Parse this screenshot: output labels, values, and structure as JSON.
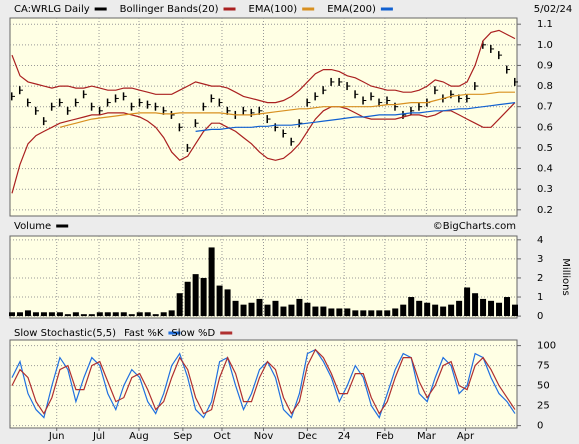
{
  "chart_data": [
    {
      "type": "price",
      "date": "5/02/24",
      "series": [
        {
          "name": "CA:WRLG Daily",
          "color": "#000000",
          "style": "bars",
          "values": [
            0.75,
            0.78,
            0.72,
            0.68,
            0.63,
            0.7,
            0.72,
            0.68,
            0.72,
            0.76,
            0.7,
            0.68,
            0.72,
            0.74,
            0.75,
            0.7,
            0.72,
            0.71,
            0.7,
            0.68,
            0.66,
            0.6,
            0.5,
            0.62,
            0.7,
            0.74,
            0.72,
            0.68,
            0.66,
            0.68,
            0.67,
            0.68,
            0.64,
            0.6,
            0.57,
            0.53,
            0.62,
            0.72,
            0.75,
            0.78,
            0.82,
            0.82,
            0.8,
            0.76,
            0.73,
            0.75,
            0.72,
            0.73,
            0.7,
            0.66,
            0.68,
            0.7,
            0.72,
            0.78,
            0.74,
            0.76,
            0.74,
            0.74,
            0.8,
            1.0,
            0.98,
            0.95,
            0.88,
            0.82
          ]
        },
        {
          "name": "Bollinger Bands(20)",
          "color": "#aa2020",
          "style": "band",
          "values": [
            0.95,
            0.85,
            0.82,
            0.81,
            0.8,
            0.79,
            0.8,
            0.8,
            0.79,
            0.79,
            0.8,
            0.79,
            0.78,
            0.78,
            0.79,
            0.79,
            0.78,
            0.77,
            0.76,
            0.76,
            0.76,
            0.78,
            0.8,
            0.82,
            0.81,
            0.8,
            0.8,
            0.79,
            0.77,
            0.75,
            0.74,
            0.73,
            0.72,
            0.72,
            0.73,
            0.75,
            0.78,
            0.82,
            0.86,
            0.88,
            0.88,
            0.87,
            0.85,
            0.84,
            0.82,
            0.8,
            0.79,
            0.78,
            0.78,
            0.77,
            0.77,
            0.78,
            0.8,
            0.83,
            0.82,
            0.8,
            0.8,
            0.82,
            0.9,
            1.02,
            1.06,
            1.07,
            1.05,
            1.03
          ],
          "lower": [
            0.28,
            0.42,
            0.52,
            0.56,
            0.58,
            0.6,
            0.62,
            0.63,
            0.64,
            0.65,
            0.66,
            0.66,
            0.67,
            0.67,
            0.67,
            0.66,
            0.65,
            0.63,
            0.6,
            0.55,
            0.48,
            0.44,
            0.46,
            0.52,
            0.58,
            0.62,
            0.62,
            0.6,
            0.58,
            0.55,
            0.52,
            0.48,
            0.45,
            0.44,
            0.45,
            0.48,
            0.52,
            0.58,
            0.64,
            0.68,
            0.7,
            0.7,
            0.69,
            0.67,
            0.65,
            0.64,
            0.64,
            0.64,
            0.64,
            0.65,
            0.66,
            0.66,
            0.65,
            0.66,
            0.68,
            0.68,
            0.66,
            0.64,
            0.62,
            0.6,
            0.6,
            0.64,
            0.68,
            0.72
          ]
        },
        {
          "name": "EMA(100)",
          "color": "#d89020",
          "style": "line",
          "values": [
            null,
            null,
            null,
            null,
            null,
            null,
            0.6,
            0.61,
            0.62,
            0.63,
            0.64,
            0.645,
            0.65,
            0.655,
            0.66,
            0.665,
            0.67,
            0.67,
            0.67,
            0.665,
            0.665,
            0.67,
            0.67,
            0.67,
            0.67,
            0.67,
            0.67,
            0.665,
            0.66,
            0.66,
            0.66,
            0.665,
            0.67,
            0.675,
            0.68,
            0.685,
            0.69,
            0.69,
            0.695,
            0.7,
            0.7,
            0.7,
            0.7,
            0.7,
            0.7,
            0.7,
            0.705,
            0.71,
            0.71,
            0.715,
            0.72,
            0.72,
            0.72,
            0.73,
            0.74,
            0.75,
            0.755,
            0.76,
            0.76,
            0.76,
            0.765,
            0.77,
            0.77,
            0.77
          ]
        },
        {
          "name": "EMA(200)",
          "color": "#1060d0",
          "style": "line",
          "values": [
            null,
            null,
            null,
            null,
            null,
            null,
            null,
            null,
            null,
            null,
            null,
            null,
            null,
            null,
            null,
            null,
            null,
            null,
            null,
            null,
            null,
            null,
            null,
            0.58,
            0.585,
            0.59,
            0.59,
            0.595,
            0.6,
            0.6,
            0.6,
            0.605,
            0.605,
            0.61,
            0.61,
            0.61,
            0.615,
            0.62,
            0.625,
            0.63,
            0.635,
            0.64,
            0.645,
            0.65,
            0.65,
            0.655,
            0.66,
            0.66,
            0.66,
            0.665,
            0.67,
            0.67,
            0.675,
            0.68,
            0.68,
            0.685,
            0.69,
            0.69,
            0.695,
            0.7,
            0.705,
            0.71,
            0.715,
            0.72
          ]
        }
      ],
      "ylim": [
        0.17,
        1.13
      ],
      "yticks": [
        0.2,
        0.3,
        0.4,
        0.5,
        0.6,
        0.7,
        0.8,
        0.9,
        {
          "value": 1,
          "label": "1.0"
        },
        1.1
      ],
      "grid": true
    },
    {
      "type": "bar",
      "title": "Volume",
      "color": "#000000",
      "watermark": "©BigCharts.com",
      "y_label": "Millions",
      "values": [
        0.2,
        0.2,
        0.3,
        0.2,
        0.2,
        0.2,
        0.2,
        0.1,
        0.2,
        0.1,
        0.1,
        0.2,
        0.2,
        0.2,
        0.2,
        0.1,
        0.2,
        0.2,
        0.1,
        0.2,
        0.3,
        1.2,
        1.8,
        2.2,
        2.0,
        3.6,
        1.6,
        1.4,
        0.8,
        0.6,
        0.7,
        0.9,
        0.6,
        0.8,
        0.5,
        0.6,
        0.9,
        0.7,
        0.5,
        0.5,
        0.4,
        0.4,
        0.4,
        0.3,
        0.3,
        0.3,
        0.3,
        0.3,
        0.4,
        0.6,
        1.0,
        0.8,
        0.7,
        0.6,
        0.5,
        0.6,
        0.8,
        1.5,
        1.2,
        0.9,
        0.8,
        0.7,
        1.0,
        0.6
      ],
      "ylim": [
        -0.1,
        4.2
      ],
      "yticks": [
        0,
        1,
        2,
        3,
        4
      ],
      "grid": true
    },
    {
      "type": "line",
      "title": "Slow Stochastic(5,5)",
      "series": [
        {
          "name": "Fast %K",
          "color": "#2070e0",
          "values": [
            60,
            80,
            40,
            20,
            10,
            50,
            85,
            70,
            30,
            60,
            85,
            75,
            40,
            20,
            50,
            70,
            60,
            30,
            15,
            40,
            75,
            90,
            60,
            20,
            10,
            30,
            80,
            85,
            50,
            20,
            40,
            70,
            80,
            60,
            20,
            10,
            40,
            90,
            95,
            80,
            60,
            30,
            50,
            75,
            60,
            25,
            10,
            40,
            70,
            90,
            85,
            40,
            30,
            60,
            85,
            75,
            40,
            50,
            90,
            85,
            60,
            40,
            30,
            15
          ]
        },
        {
          "name": "Slow %D",
          "color": "#b03030",
          "values": [
            50,
            70,
            60,
            30,
            15,
            35,
            70,
            75,
            45,
            45,
            75,
            80,
            55,
            30,
            35,
            60,
            65,
            45,
            20,
            30,
            60,
            85,
            70,
            35,
            15,
            20,
            60,
            85,
            65,
            30,
            30,
            60,
            80,
            70,
            35,
            15,
            30,
            75,
            95,
            85,
            65,
            40,
            40,
            65,
            65,
            35,
            15,
            30,
            60,
            85,
            85,
            55,
            35,
            50,
            75,
            80,
            50,
            45,
            75,
            85,
            70,
            50,
            35,
            20
          ]
        }
      ],
      "ylim": [
        -3,
        107
      ],
      "yticks": [
        0,
        25,
        50,
        75,
        100
      ],
      "grid": true,
      "xlim": [
        0,
        63
      ],
      "xticks": [
        {
          "value": 5.6,
          "label": "Jun"
        },
        {
          "value": 10.9,
          "label": "Jul"
        },
        {
          "value": 15.9,
          "label": "Aug"
        },
        {
          "value": 21.4,
          "label": "Sep"
        },
        {
          "value": 26.3,
          "label": "Oct"
        },
        {
          "value": 31.5,
          "label": "Nov"
        },
        {
          "value": 37,
          "label": "Dec"
        },
        {
          "value": 41.6,
          "label": "24"
        },
        {
          "value": 46.7,
          "label": "Feb"
        },
        {
          "value": 51.9,
          "label": "Mar"
        },
        {
          "value": 56.8,
          "label": "Apr"
        }
      ]
    }
  ]
}
